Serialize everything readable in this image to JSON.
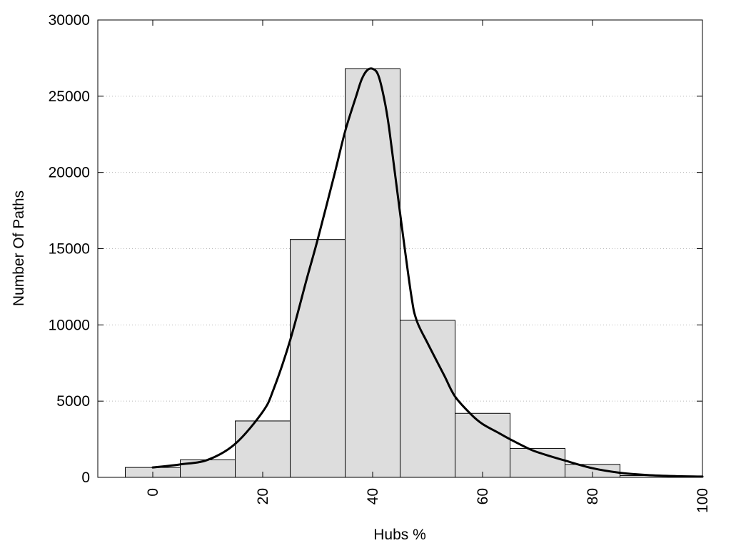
{
  "chart_data": {
    "type": "bar",
    "xlabel": "Hubs %",
    "ylabel": "Number Of Paths",
    "xlim": [
      -10,
      100
    ],
    "ylim": [
      0,
      30000
    ],
    "x_ticks": [
      0,
      20,
      40,
      60,
      80,
      100
    ],
    "y_ticks": [
      0,
      5000,
      10000,
      15000,
      20000,
      25000,
      30000
    ],
    "grid": "horizontal-dotted",
    "bin_width": 10,
    "bins": [
      {
        "center": 0,
        "value": 650
      },
      {
        "center": 10,
        "value": 1150
      },
      {
        "center": 20,
        "value": 3700
      },
      {
        "center": 30,
        "value": 15600
      },
      {
        "center": 40,
        "value": 26800
      },
      {
        "center": 50,
        "value": 10300
      },
      {
        "center": 60,
        "value": 4200
      },
      {
        "center": 70,
        "value": 1900
      },
      {
        "center": 80,
        "value": 850
      },
      {
        "center": 90,
        "value": 120
      }
    ],
    "curve": {
      "x": [
        0,
        5,
        10,
        15,
        20,
        22,
        25,
        28,
        30,
        33,
        35,
        37,
        38,
        39,
        40,
        41,
        42,
        43,
        45,
        47,
        48,
        50,
        53,
        55,
        58,
        60,
        63,
        65,
        68,
        70,
        75,
        80,
        85,
        90,
        95,
        100
      ],
      "y": [
        650,
        850,
        1150,
        2200,
        4300,
        5800,
        9000,
        13000,
        15600,
        19800,
        22700,
        25000,
        26100,
        26700,
        26800,
        26400,
        25000,
        22900,
        17300,
        12000,
        10300,
        8800,
        6700,
        5300,
        4100,
        3500,
        2900,
        2500,
        1950,
        1650,
        1100,
        600,
        300,
        150,
        80,
        50
      ]
    }
  }
}
